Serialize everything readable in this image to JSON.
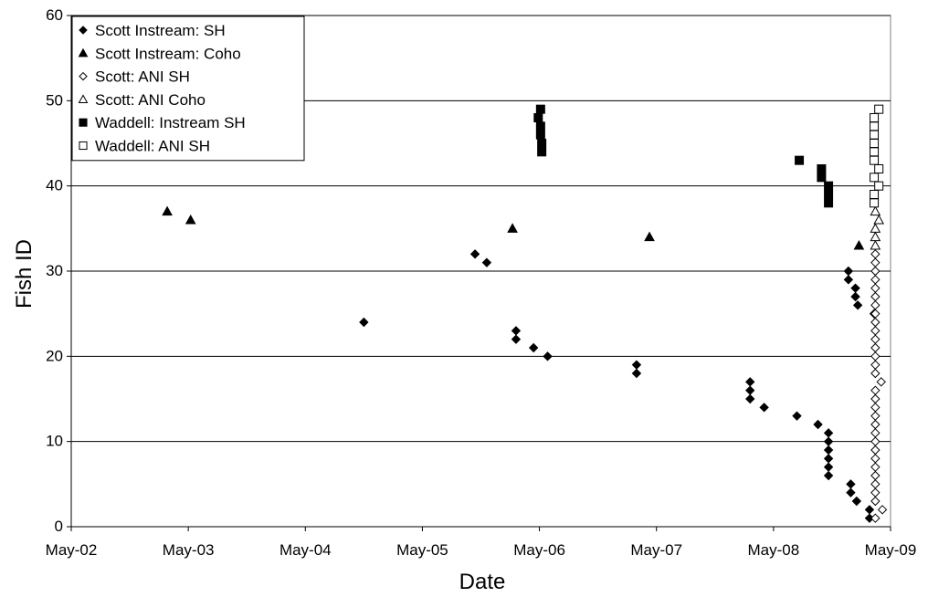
{
  "chart_data": {
    "type": "scatter",
    "title": "",
    "xlabel": "Date",
    "ylabel": "Fish ID",
    "xlim": [
      2002,
      2009
    ],
    "ylim": [
      0,
      60
    ],
    "x_tick_labels": [
      "May-02",
      "May-03",
      "May-04",
      "May-05",
      "May-06",
      "May-07",
      "May-08",
      "May-09"
    ],
    "y_ticks": [
      0,
      10,
      20,
      30,
      40,
      50,
      60
    ],
    "grid": "horizontal",
    "legend_position": "top-left",
    "series": [
      {
        "name": "Scott Instream: SH",
        "marker": "diamond-filled",
        "points": [
          [
            2004.5,
            24
          ],
          [
            2005.45,
            32
          ],
          [
            2005.55,
            31
          ],
          [
            2005.8,
            23
          ],
          [
            2005.8,
            22
          ],
          [
            2005.95,
            21
          ],
          [
            2006.07,
            20
          ],
          [
            2006.83,
            19
          ],
          [
            2006.83,
            18
          ],
          [
            2007.8,
            17
          ],
          [
            2007.8,
            16
          ],
          [
            2007.8,
            15
          ],
          [
            2007.92,
            14
          ],
          [
            2008.2,
            13
          ],
          [
            2008.38,
            12
          ],
          [
            2008.47,
            11
          ],
          [
            2008.47,
            10
          ],
          [
            2008.47,
            9
          ],
          [
            2008.47,
            8
          ],
          [
            2008.47,
            7
          ],
          [
            2008.47,
            6
          ],
          [
            2008.66,
            5
          ],
          [
            2008.66,
            4
          ],
          [
            2008.71,
            3
          ],
          [
            2008.82,
            2
          ],
          [
            2008.82,
            1
          ],
          [
            2008.64,
            30
          ],
          [
            2008.64,
            29
          ],
          [
            2008.7,
            28
          ],
          [
            2008.7,
            27
          ],
          [
            2008.72,
            26
          ],
          [
            2008.86,
            25
          ]
        ]
      },
      {
        "name": "Scott Instream: Coho",
        "marker": "triangle-filled",
        "points": [
          [
            2002.82,
            37
          ],
          [
            2003.02,
            36
          ],
          [
            2005.77,
            35
          ],
          [
            2006.94,
            34
          ],
          [
            2008.73,
            33
          ]
        ]
      },
      {
        "name": "Scott: ANI SH",
        "marker": "diamond-open",
        "points": [
          [
            2008.87,
            1
          ],
          [
            2008.93,
            2
          ],
          [
            2008.87,
            3
          ],
          [
            2008.87,
            4
          ],
          [
            2008.87,
            5
          ],
          [
            2008.87,
            6
          ],
          [
            2008.87,
            7
          ],
          [
            2008.87,
            8
          ],
          [
            2008.87,
            9
          ],
          [
            2008.87,
            10
          ],
          [
            2008.87,
            11
          ],
          [
            2008.87,
            12
          ],
          [
            2008.87,
            13
          ],
          [
            2008.87,
            14
          ],
          [
            2008.87,
            15
          ],
          [
            2008.87,
            16
          ],
          [
            2008.92,
            17
          ],
          [
            2008.87,
            18
          ],
          [
            2008.87,
            19
          ],
          [
            2008.87,
            20
          ],
          [
            2008.87,
            21
          ],
          [
            2008.87,
            22
          ],
          [
            2008.87,
            23
          ],
          [
            2008.87,
            24
          ],
          [
            2008.87,
            25
          ],
          [
            2008.87,
            26
          ],
          [
            2008.87,
            27
          ],
          [
            2008.87,
            28
          ],
          [
            2008.87,
            29
          ],
          [
            2008.87,
            30
          ],
          [
            2008.87,
            31
          ],
          [
            2008.87,
            32
          ]
        ]
      },
      {
        "name": "Scott: ANI Coho",
        "marker": "triangle-open",
        "points": [
          [
            2008.87,
            33
          ],
          [
            2008.87,
            34
          ],
          [
            2008.87,
            35
          ],
          [
            2008.9,
            36
          ],
          [
            2008.87,
            37
          ]
        ]
      },
      {
        "name": "Waddell: Instream SH",
        "marker": "square-filled",
        "points": [
          [
            2005.99,
            48
          ],
          [
            2006.01,
            49
          ],
          [
            2006.01,
            47
          ],
          [
            2006.01,
            46
          ],
          [
            2006.02,
            45
          ],
          [
            2006.02,
            44
          ],
          [
            2008.22,
            43
          ],
          [
            2008.41,
            42
          ],
          [
            2008.41,
            41
          ],
          [
            2008.47,
            40
          ],
          [
            2008.47,
            39
          ],
          [
            2008.47,
            38
          ]
        ]
      },
      {
        "name": "Waddell: ANI SH",
        "marker": "square-open",
        "points": [
          [
            2008.86,
            48
          ],
          [
            2008.9,
            49
          ],
          [
            2008.86,
            47
          ],
          [
            2008.86,
            46
          ],
          [
            2008.86,
            45
          ],
          [
            2008.86,
            44
          ],
          [
            2008.86,
            43
          ],
          [
            2008.9,
            42
          ],
          [
            2008.86,
            41
          ],
          [
            2008.9,
            40
          ],
          [
            2008.86,
            39
          ],
          [
            2008.86,
            38
          ]
        ]
      }
    ]
  }
}
